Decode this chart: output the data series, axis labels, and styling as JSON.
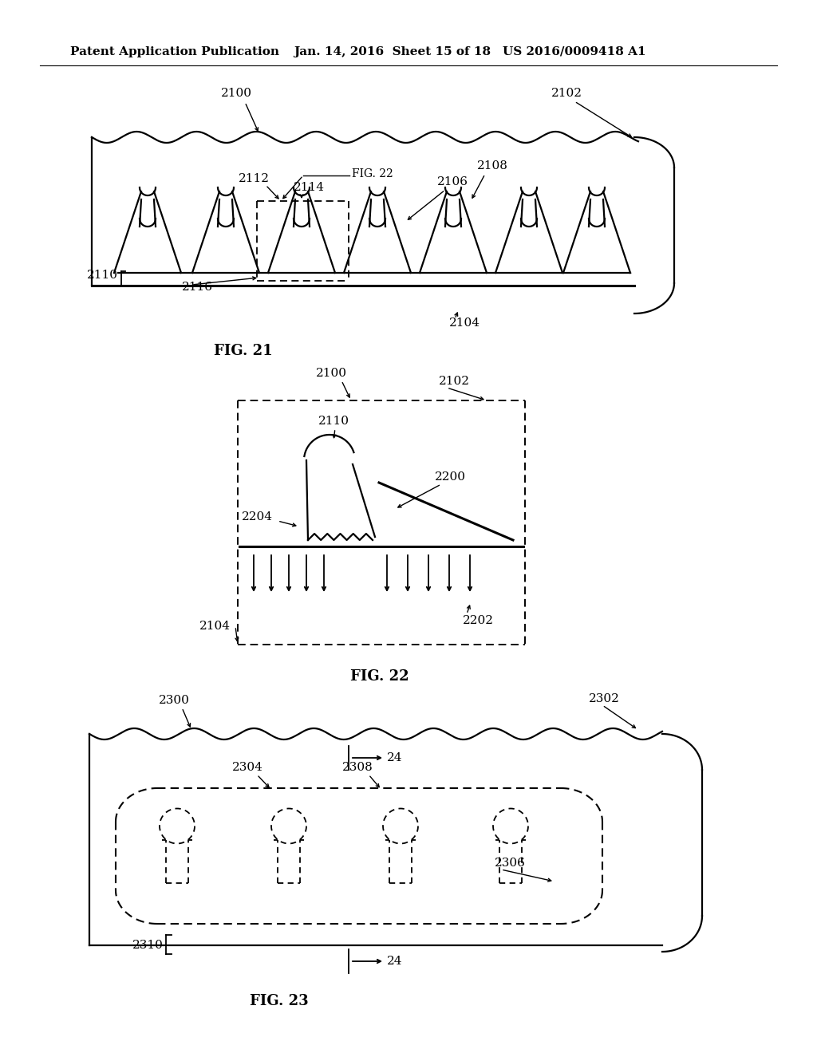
{
  "bg_color": "#ffffff",
  "header_left": "Patent Application Publication",
  "header_mid": "Jan. 14, 2016  Sheet 15 of 18",
  "header_right": "US 2016/0009418 A1",
  "fig21_title": "FIG. 21",
  "fig22_title": "FIG. 22",
  "fig23_title": "FIG. 23",
  "lc": "#000000",
  "lw_thin": 1.0,
  "lw_med": 1.6,
  "lw_thick": 2.2,
  "fs_header": 11,
  "fs_label": 11,
  "fs_title": 13
}
